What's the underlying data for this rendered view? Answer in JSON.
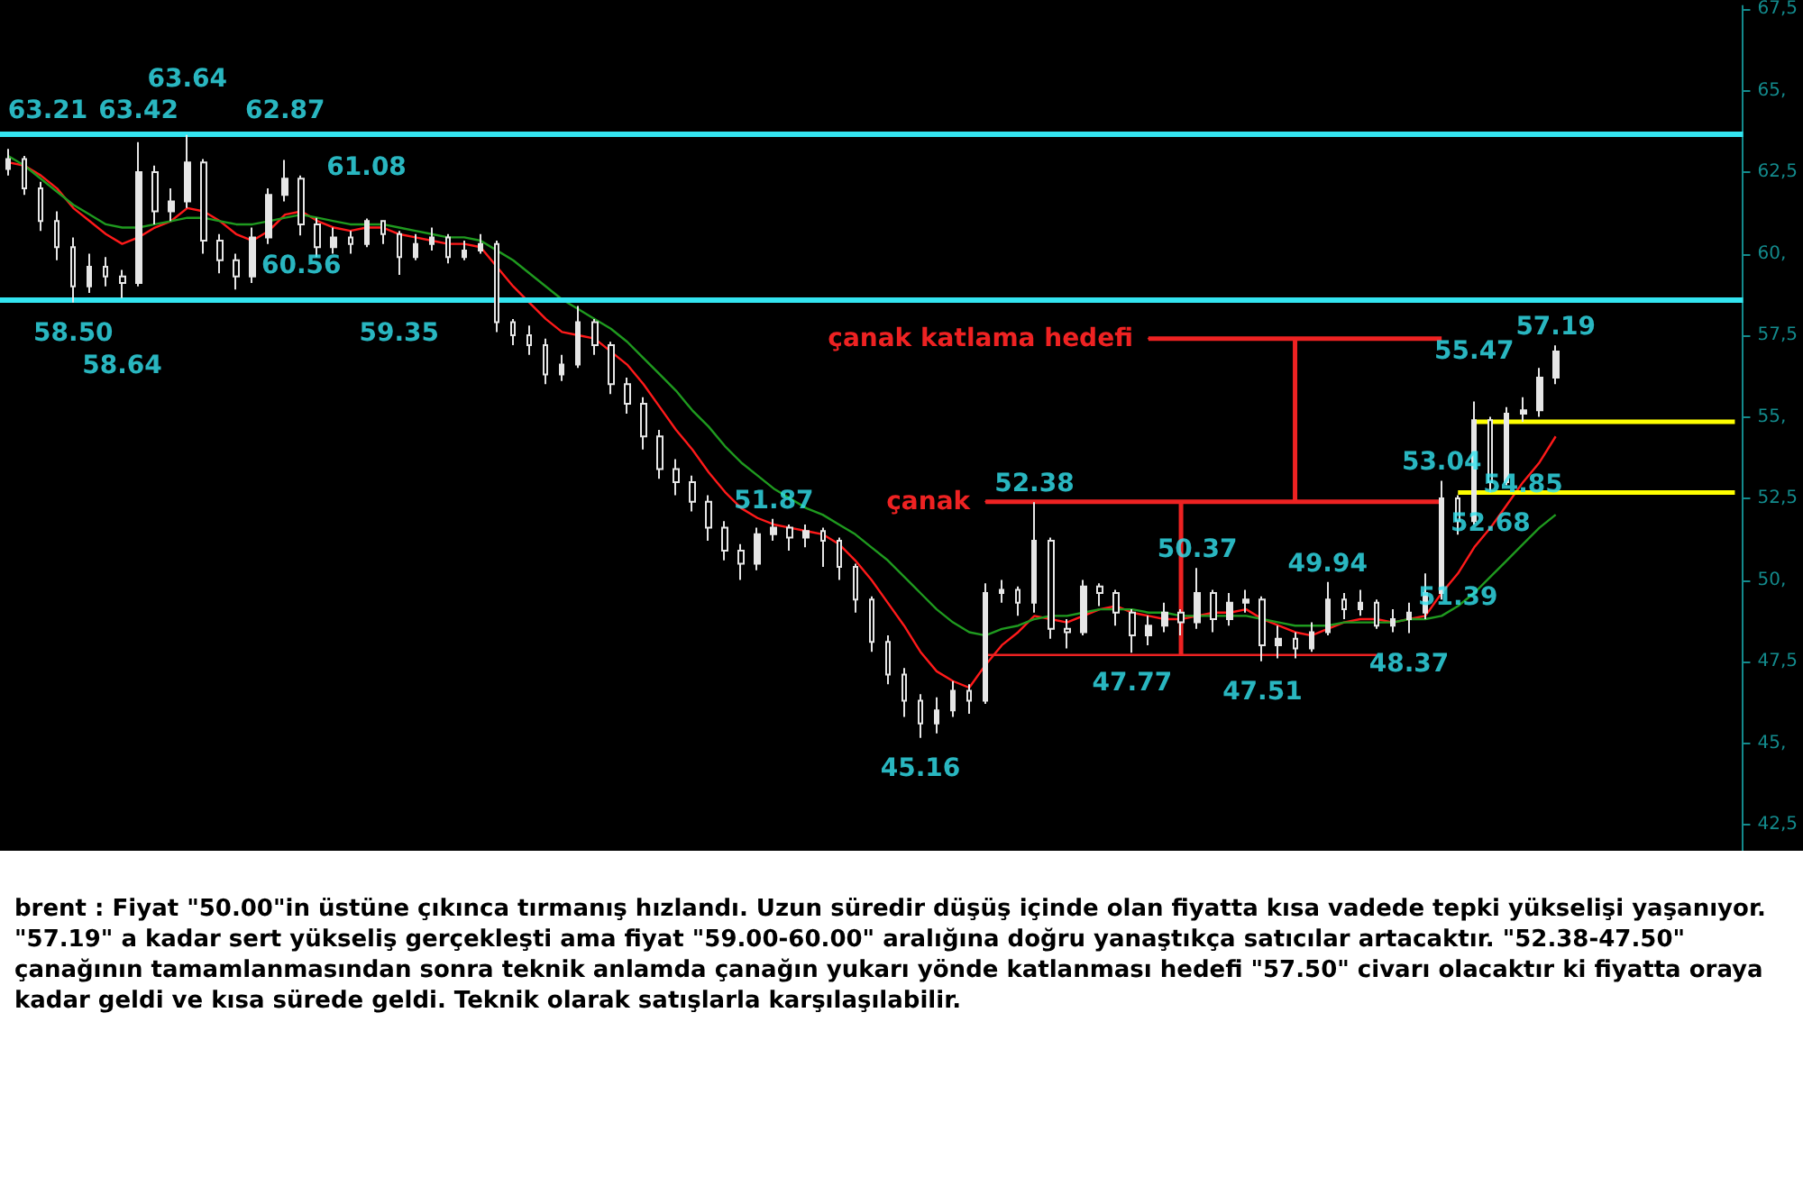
{
  "chart_data": {
    "type": "candlestick",
    "color": "#e6e6e6",
    "categories": [
      null,
      null,
      null,
      null,
      null,
      null,
      null,
      null,
      null,
      null,
      null,
      null,
      null,
      null,
      null,
      null,
      null,
      null,
      null,
      null,
      null,
      null,
      null,
      null,
      null,
      null,
      null,
      null,
      null,
      null,
      null,
      null,
      null,
      null,
      null,
      null,
      null,
      null,
      null,
      null,
      null,
      null,
      null,
      null,
      null,
      null,
      null,
      null,
      null,
      null,
      null,
      null,
      null,
      null,
      null,
      null,
      null,
      null,
      null,
      null,
      null,
      null,
      null,
      null,
      null,
      null,
      null,
      null,
      null,
      null,
      null,
      null,
      null,
      null,
      null,
      null,
      null,
      null,
      null,
      null,
      null,
      null,
      null,
      null,
      null,
      null,
      null,
      null,
      null,
      null,
      null,
      null,
      null,
      null,
      null,
      null,
      null,
      null,
      null,
      null,
      null,
      null,
      null,
      null,
      null,
      null,
      null
    ],
    "ohlc": [
      [
        62.6,
        63.21,
        62.4,
        62.9
      ],
      [
        62.9,
        63.0,
        61.8,
        62.0
      ],
      [
        62.0,
        62.2,
        60.7,
        61.0
      ],
      [
        61.0,
        61.3,
        59.8,
        60.2
      ],
      [
        60.2,
        60.5,
        58.5,
        59.0
      ],
      [
        59.0,
        60.0,
        58.8,
        59.6
      ],
      [
        59.6,
        59.9,
        59.0,
        59.3
      ],
      [
        59.3,
        59.5,
        58.64,
        59.1
      ],
      [
        59.1,
        63.42,
        59.0,
        62.5
      ],
      [
        62.5,
        62.7,
        60.9,
        61.3
      ],
      [
        61.3,
        62.0,
        61.0,
        61.6
      ],
      [
        61.6,
        63.64,
        61.4,
        62.8
      ],
      [
        62.8,
        62.9,
        60.0,
        60.4
      ],
      [
        60.4,
        60.6,
        59.4,
        59.8
      ],
      [
        59.8,
        60.0,
        58.9,
        59.3
      ],
      [
        59.3,
        60.8,
        59.1,
        60.5
      ],
      [
        60.5,
        62.0,
        60.3,
        61.8
      ],
      [
        61.8,
        62.87,
        61.6,
        62.3
      ],
      [
        62.3,
        62.4,
        60.56,
        60.9
      ],
      [
        60.9,
        61.1,
        59.9,
        60.2
      ],
      [
        60.2,
        60.8,
        60.0,
        60.5
      ],
      [
        60.5,
        60.7,
        60.0,
        60.3
      ],
      [
        60.3,
        61.08,
        60.2,
        61.0
      ],
      [
        61.0,
        61.0,
        60.3,
        60.6
      ],
      [
        60.6,
        60.7,
        59.35,
        59.9
      ],
      [
        59.9,
        60.6,
        59.8,
        60.3
      ],
      [
        60.3,
        60.8,
        60.1,
        60.5
      ],
      [
        60.5,
        60.6,
        59.7,
        59.9
      ],
      [
        59.9,
        60.4,
        59.8,
        60.1
      ],
      [
        60.1,
        60.6,
        60.0,
        60.3
      ],
      [
        60.3,
        60.4,
        57.6,
        57.9
      ],
      [
        57.9,
        58.0,
        57.2,
        57.5
      ],
      [
        57.5,
        57.8,
        56.9,
        57.2
      ],
      [
        57.2,
        57.4,
        56.0,
        56.3
      ],
      [
        56.3,
        56.9,
        56.1,
        56.6
      ],
      [
        56.6,
        58.4,
        56.5,
        57.9
      ],
      [
        57.9,
        58.0,
        56.9,
        57.2
      ],
      [
        57.2,
        57.3,
        55.7,
        56.0
      ],
      [
        56.0,
        56.2,
        55.1,
        55.4
      ],
      [
        55.4,
        55.6,
        54.0,
        54.4
      ],
      [
        54.4,
        54.6,
        53.1,
        53.4
      ],
      [
        53.4,
        53.7,
        52.6,
        53.0
      ],
      [
        53.0,
        53.2,
        52.1,
        52.4
      ],
      [
        52.4,
        52.6,
        51.2,
        51.6
      ],
      [
        51.6,
        51.8,
        50.6,
        50.9
      ],
      [
        50.9,
        51.1,
        50.0,
        50.5
      ],
      [
        50.5,
        51.6,
        50.3,
        51.4
      ],
      [
        51.4,
        51.87,
        51.2,
        51.6
      ],
      [
        51.6,
        51.7,
        50.9,
        51.3
      ],
      [
        51.3,
        51.7,
        51.0,
        51.5
      ],
      [
        51.5,
        51.6,
        50.4,
        51.2
      ],
      [
        51.2,
        51.3,
        50.0,
        50.4
      ],
      [
        50.4,
        50.5,
        49.0,
        49.4
      ],
      [
        49.4,
        49.5,
        47.8,
        48.1
      ],
      [
        48.1,
        48.3,
        46.8,
        47.1
      ],
      [
        47.1,
        47.3,
        45.8,
        46.3
      ],
      [
        46.3,
        46.5,
        45.16,
        45.6
      ],
      [
        45.6,
        46.4,
        45.3,
        46.0
      ],
      [
        46.0,
        46.9,
        45.8,
        46.6
      ],
      [
        46.6,
        46.8,
        45.9,
        46.3
      ],
      [
        46.3,
        49.9,
        46.2,
        49.6
      ],
      [
        49.6,
        50.0,
        49.3,
        49.7
      ],
      [
        49.7,
        49.8,
        48.9,
        49.3
      ],
      [
        49.3,
        52.38,
        49.0,
        51.2
      ],
      [
        51.2,
        51.3,
        48.2,
        48.5
      ],
      [
        48.5,
        48.8,
        47.9,
        48.4
      ],
      [
        48.4,
        50.0,
        48.3,
        49.8
      ],
      [
        49.8,
        49.9,
        49.2,
        49.6
      ],
      [
        49.6,
        49.7,
        48.6,
        49.0
      ],
      [
        49.0,
        49.1,
        47.77,
        48.3
      ],
      [
        48.3,
        48.9,
        48.0,
        48.6
      ],
      [
        48.6,
        49.3,
        48.4,
        49.0
      ],
      [
        49.0,
        49.1,
        48.3,
        48.7
      ],
      [
        48.7,
        50.37,
        48.5,
        49.6
      ],
      [
        49.6,
        49.7,
        48.4,
        48.8
      ],
      [
        48.8,
        49.6,
        48.6,
        49.3
      ],
      [
        49.3,
        49.7,
        49.0,
        49.4
      ],
      [
        49.4,
        49.5,
        47.51,
        48.0
      ],
      [
        48.0,
        48.6,
        47.6,
        48.2
      ],
      [
        48.2,
        48.4,
        47.6,
        47.9
      ],
      [
        47.9,
        48.7,
        47.8,
        48.4
      ],
      [
        48.4,
        49.94,
        48.3,
        49.4
      ],
      [
        49.4,
        49.6,
        48.8,
        49.1
      ],
      [
        49.1,
        49.7,
        48.9,
        49.3
      ],
      [
        49.3,
        49.4,
        48.5,
        48.6
      ],
      [
        48.6,
        49.1,
        48.4,
        48.8
      ],
      [
        48.8,
        49.3,
        48.37,
        49.0
      ],
      [
        49.0,
        50.2,
        48.8,
        49.6
      ],
      [
        49.6,
        53.04,
        49.4,
        52.5
      ],
      [
        52.5,
        52.6,
        51.39,
        51.8
      ],
      [
        51.8,
        55.47,
        51.7,
        54.9
      ],
      [
        54.9,
        55.0,
        52.68,
        53.0
      ],
      [
        53.0,
        55.3,
        52.9,
        55.1
      ],
      [
        55.1,
        55.6,
        54.85,
        55.2
      ],
      [
        55.2,
        56.5,
        55.0,
        56.2
      ],
      [
        56.2,
        57.19,
        56.0,
        57.0
      ],
      null,
      null,
      null,
      null,
      null,
      null,
      null,
      null,
      null,
      null,
      null
    ],
    "value_labels": [
      "63.21",
      null,
      null,
      null,
      "58.50",
      null,
      null,
      "58.64",
      "63.42",
      null,
      null,
      "63.64",
      null,
      null,
      null,
      null,
      null,
      "62.87",
      "60.56",
      null,
      null,
      null,
      "61.08",
      null,
      "59.35",
      null,
      null,
      null,
      null,
      null,
      null,
      null,
      null,
      null,
      null,
      null,
      null,
      null,
      null,
      null,
      null,
      null,
      null,
      null,
      null,
      null,
      null,
      "51.87",
      null,
      null,
      null,
      null,
      null,
      null,
      null,
      null,
      "45.16",
      null,
      null,
      null,
      null,
      null,
      null,
      "52.38",
      null,
      null,
      null,
      null,
      null,
      "47.77",
      null,
      null,
      null,
      "50.37",
      null,
      null,
      null,
      "47.51",
      null,
      null,
      null,
      "49.94",
      null,
      null,
      null,
      null,
      "48.37",
      null,
      "53.04",
      "51.39",
      "55.47",
      "52.68",
      null,
      "54.85",
      null,
      "57.19",
      null,
      null,
      null,
      null,
      null,
      null,
      null,
      null,
      null,
      null,
      null
    ],
    "series": [
      {
        "type": "line",
        "color": "#ff1a1a",
        "values": [
          62.8,
          62.7,
          62.4,
          62.0,
          61.4,
          61.0,
          60.6,
          60.3,
          60.5,
          60.8,
          61.0,
          61.4,
          61.3,
          61.0,
          60.6,
          60.4,
          60.7,
          61.2,
          61.3,
          61.0,
          60.8,
          60.7,
          60.8,
          60.8,
          60.6,
          60.5,
          60.4,
          60.3,
          60.3,
          60.2,
          59.6,
          59.0,
          58.5,
          58.0,
          57.6,
          57.5,
          57.4,
          57.0,
          56.6,
          56.0,
          55.3,
          54.6,
          54.0,
          53.3,
          52.7,
          52.2,
          51.9,
          51.7,
          51.6,
          51.5,
          51.4,
          51.1,
          50.6,
          50.0,
          49.3,
          48.6,
          47.8,
          47.2,
          46.9,
          46.7,
          47.4,
          48.0,
          48.4,
          48.9,
          48.8,
          48.7,
          48.9,
          49.1,
          49.2,
          49.0,
          48.9,
          48.8,
          48.8,
          48.9,
          49.0,
          49.0,
          49.1,
          48.8,
          48.6,
          48.4,
          48.3,
          48.5,
          48.7,
          48.8,
          48.8,
          48.7,
          48.8,
          48.9,
          49.6,
          50.2,
          51.0,
          51.6,
          52.3,
          53.0,
          53.6,
          54.4,
          null,
          null,
          null,
          null,
          null,
          null,
          null,
          null,
          null,
          null,
          null
        ]
      },
      {
        "type": "line",
        "color": "#1f9a1f",
        "values": [
          63.0,
          62.7,
          62.3,
          61.9,
          61.5,
          61.2,
          60.9,
          60.8,
          60.8,
          60.9,
          61.0,
          61.1,
          61.1,
          61.0,
          60.9,
          60.9,
          61.0,
          61.1,
          61.2,
          61.1,
          61.0,
          60.9,
          60.9,
          60.9,
          60.8,
          60.7,
          60.6,
          60.5,
          60.5,
          60.4,
          60.1,
          59.8,
          59.4,
          59.0,
          58.6,
          58.3,
          58.0,
          57.7,
          57.3,
          56.8,
          56.3,
          55.8,
          55.2,
          54.7,
          54.1,
          53.6,
          53.2,
          52.8,
          52.5,
          52.2,
          52.0,
          51.7,
          51.4,
          51.0,
          50.6,
          50.1,
          49.6,
          49.1,
          48.7,
          48.4,
          48.3,
          48.5,
          48.6,
          48.8,
          48.9,
          48.9,
          49.0,
          49.1,
          49.1,
          49.1,
          49.0,
          49.0,
          48.9,
          48.9,
          48.9,
          48.9,
          48.9,
          48.8,
          48.7,
          48.6,
          48.6,
          48.6,
          48.7,
          48.7,
          48.7,
          48.7,
          48.8,
          48.8,
          48.9,
          49.2,
          49.6,
          50.1,
          50.6,
          51.1,
          51.6,
          52.0,
          null,
          null,
          null,
          null,
          null,
          null,
          null,
          null,
          null,
          null,
          null
        ]
      },
      {
        "type": "line",
        "color": "#ffff00",
        "values": [
          null,
          null,
          null,
          null,
          null,
          null,
          null,
          null,
          null,
          null,
          null,
          null,
          null,
          null,
          null,
          null,
          null,
          null,
          null,
          null,
          null,
          null,
          null,
          null,
          null,
          null,
          null,
          null,
          null,
          null,
          null,
          null,
          null,
          null,
          null,
          null,
          null,
          null,
          null,
          null,
          null,
          null,
          null,
          null,
          null,
          null,
          null,
          null,
          null,
          null,
          null,
          null,
          null,
          null,
          null,
          null,
          null,
          null,
          null,
          null,
          null,
          null,
          null,
          null,
          null,
          null,
          null,
          null,
          null,
          null,
          null,
          null,
          null,
          null,
          null,
          null,
          null,
          null,
          null,
          null,
          null,
          null,
          null,
          null,
          null,
          null,
          null,
          null,
          null,
          null,
          54.85,
          54.85,
          54.85,
          54.85,
          54.85,
          54.85,
          54.85,
          54.85,
          54.85,
          54.85,
          54.85,
          54.85,
          54.85,
          54.85,
          54.85,
          54.85,
          54.85
        ]
      },
      {
        "type": "line",
        "color": "#ffff00",
        "values": [
          null,
          null,
          null,
          null,
          null,
          null,
          null,
          null,
          null,
          null,
          null,
          null,
          null,
          null,
          null,
          null,
          null,
          null,
          null,
          null,
          null,
          null,
          null,
          null,
          null,
          null,
          null,
          null,
          null,
          null,
          null,
          null,
          null,
          null,
          null,
          null,
          null,
          null,
          null,
          null,
          null,
          null,
          null,
          null,
          null,
          null,
          null,
          null,
          null,
          null,
          null,
          null,
          null,
          null,
          null,
          null,
          null,
          null,
          null,
          null,
          null,
          null,
          null,
          null,
          null,
          null,
          null,
          null,
          null,
          null,
          null,
          null,
          null,
          null,
          null,
          null,
          null,
          null,
          null,
          null,
          null,
          null,
          null,
          null,
          null,
          null,
          null,
          null,
          null,
          52.68,
          52.68,
          52.68,
          52.68,
          52.68,
          52.68,
          52.68,
          52.68,
          52.68,
          52.68,
          52.68,
          52.68,
          52.68,
          52.68,
          52.68,
          52.68,
          52.68,
          52.68
        ]
      },
      {
        "type": "line",
        "name": "çanak",
        "color": "#ee2222",
        "values": [
          null,
          null,
          null,
          null,
          null,
          null,
          null,
          null,
          null,
          null,
          null,
          null,
          null,
          null,
          null,
          null,
          null,
          null,
          null,
          null,
          null,
          null,
          null,
          null,
          null,
          null,
          null,
          null,
          null,
          null,
          null,
          null,
          null,
          null,
          null,
          null,
          null,
          null,
          null,
          null,
          null,
          null,
          null,
          null,
          null,
          null,
          null,
          null,
          null,
          null,
          null,
          null,
          null,
          null,
          null,
          null,
          null,
          null,
          null,
          null,
          52.4,
          52.4,
          52.4,
          52.4,
          52.4,
          52.4,
          52.4,
          52.4,
          52.4,
          52.4,
          52.4,
          52.4,
          52.4,
          52.4,
          52.4,
          52.4,
          52.4,
          52.4,
          52.4,
          52.4,
          52.4,
          52.4,
          52.4,
          52.4,
          52.4,
          52.4,
          52.4,
          52.4,
          52.4,
          null,
          null,
          null,
          null,
          null,
          null,
          null,
          null,
          null,
          null,
          null,
          null,
          null,
          null,
          null,
          null,
          null,
          null
        ]
      },
      {
        "type": "line",
        "color": "#ee2222",
        "values": [
          null,
          null,
          null,
          null,
          null,
          null,
          null,
          null,
          null,
          null,
          null,
          null,
          null,
          null,
          null,
          null,
          null,
          null,
          null,
          null,
          null,
          null,
          null,
          null,
          null,
          null,
          null,
          null,
          null,
          null,
          null,
          null,
          null,
          null,
          null,
          null,
          null,
          null,
          null,
          null,
          null,
          null,
          null,
          null,
          null,
          null,
          null,
          null,
          null,
          null,
          null,
          null,
          null,
          null,
          null,
          null,
          null,
          null,
          null,
          null,
          47.7,
          47.7,
          47.7,
          47.7,
          47.7,
          47.7,
          47.7,
          47.7,
          47.7,
          47.7,
          47.7,
          47.7,
          47.7,
          47.7,
          47.7,
          47.7,
          47.7,
          47.7,
          47.7,
          47.7,
          47.7,
          47.7,
          47.7,
          47.7,
          47.7,
          null,
          null,
          null,
          null,
          null,
          null,
          null,
          null,
          null,
          null,
          null,
          null,
          null,
          null,
          null,
          null,
          null,
          null,
          null,
          null,
          null,
          null
        ]
      },
      {
        "type": "line",
        "name": "çanak katlama hedefi",
        "color": "#ee2222",
        "values": [
          null,
          null,
          null,
          null,
          null,
          null,
          null,
          null,
          null,
          null,
          null,
          null,
          null,
          null,
          null,
          null,
          null,
          null,
          null,
          null,
          null,
          null,
          null,
          null,
          null,
          null,
          null,
          null,
          null,
          null,
          null,
          null,
          null,
          null,
          null,
          null,
          null,
          null,
          null,
          null,
          null,
          null,
          null,
          null,
          null,
          null,
          null,
          null,
          null,
          null,
          null,
          null,
          null,
          null,
          null,
          null,
          null,
          null,
          null,
          null,
          null,
          null,
          null,
          null,
          null,
          null,
          null,
          null,
          null,
          null,
          57.4,
          57.4,
          57.4,
          57.4,
          57.4,
          57.4,
          57.4,
          57.4,
          57.4,
          57.4,
          57.4,
          57.4,
          57.4,
          57.4,
          57.4,
          57.4,
          57.4,
          57.4,
          57.4,
          null,
          null,
          null,
          null,
          null,
          null,
          null,
          null,
          null,
          null,
          null,
          null,
          null,
          null,
          null,
          null,
          null,
          null
        ]
      }
    ],
    "ref_lines": [
      {
        "axis": "y",
        "value": 63.7,
        "color": "#33e4f0"
      },
      {
        "axis": "y",
        "value": 58.6,
        "color": "#33e4f0"
      }
    ],
    "ylim": [
      41.7,
      67.6
    ],
    "yticks": [
      {
        "value": 42.5,
        "label": "42,5"
      },
      {
        "value": 45,
        "label": "45,"
      },
      {
        "value": 47.5,
        "label": "47,5"
      },
      {
        "value": 50,
        "label": "50,"
      },
      {
        "value": 52.5,
        "label": "52,5"
      },
      {
        "value": 55,
        "label": "55,"
      },
      {
        "value": 57.5,
        "label": "57,5"
      },
      {
        "value": 60,
        "label": "60,"
      },
      {
        "value": 62.5,
        "label": "62,5"
      },
      {
        "value": 65,
        "label": "65,"
      },
      {
        "value": 67.5,
        "label": "67,5"
      }
    ],
    "tick_labels": "y",
    "annotations": [
      "brent : Fiyat \"50.00\"in üstüne çıkınca tırmanış hızlandı. Uzun süredir düşüş içinde olan fiyatta kısa vadede tepki yükselişi yaşanıyor. \"57.19\" a kadar sert yükseliş gerçekleşti ama fiyat \"59.00-60.00\" aralığına doğru yanaştıkça satıcılar artacaktır. \"52.38-47.50\" çanağının tamamlanmasından sonra teknik anlamda çanağın yukarı yönde katlanması hedefi \"57.50\" civarı olacaktır ki fiyatta oraya kadar geldi ve kısa sürede geldi. Teknik olarak satışlarla karşılaşılabilir."
    ]
  }
}
